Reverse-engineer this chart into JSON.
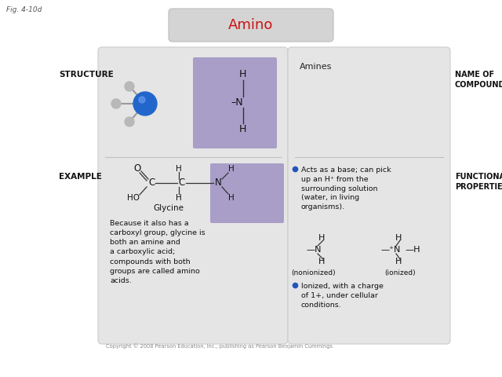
{
  "fig_label": "Fig. 4-10d",
  "title": "Amino",
  "title_color": "#cc1111",
  "title_box_color": "#d4d4d4",
  "bg_color": "#ffffff",
  "panel_bg": "#e5e5e5",
  "purple_bg": "#a89ec8",
  "structure_label": "STRUCTURE",
  "example_label": "EXAMPLE",
  "name_of_compound": "NAME OF\nCOMPOUND",
  "functional_properties": "FUNCTIONAL\nPROPERTIES",
  "amines_label": "Amines",
  "glycine_label": "Glycine",
  "example_text": "Because it also has a\ncarboxyl group, glycine is\nboth an amine and\na carboxylic acid;\ncompounds with both\ngroups are called amino\nacids.",
  "bullet1": "Acts as a base; can pick\nup an H⁺ from the\nsurrounding solution\n(water, in living\norganisms).",
  "bullet2": "Ionized, with a charge\nof 1+, under cellular\nconditions.",
  "nonionized_label": "(nonionized)",
  "ionized_label": "(ionized)",
  "copyright": "Copyright © 2008 Pearson Education, Inc., publishing as Pearson Benjamin Cummings",
  "blue_ball": "#2266cc",
  "gray_ball": "#b8b8b8",
  "bullet_color": "#2255bb"
}
